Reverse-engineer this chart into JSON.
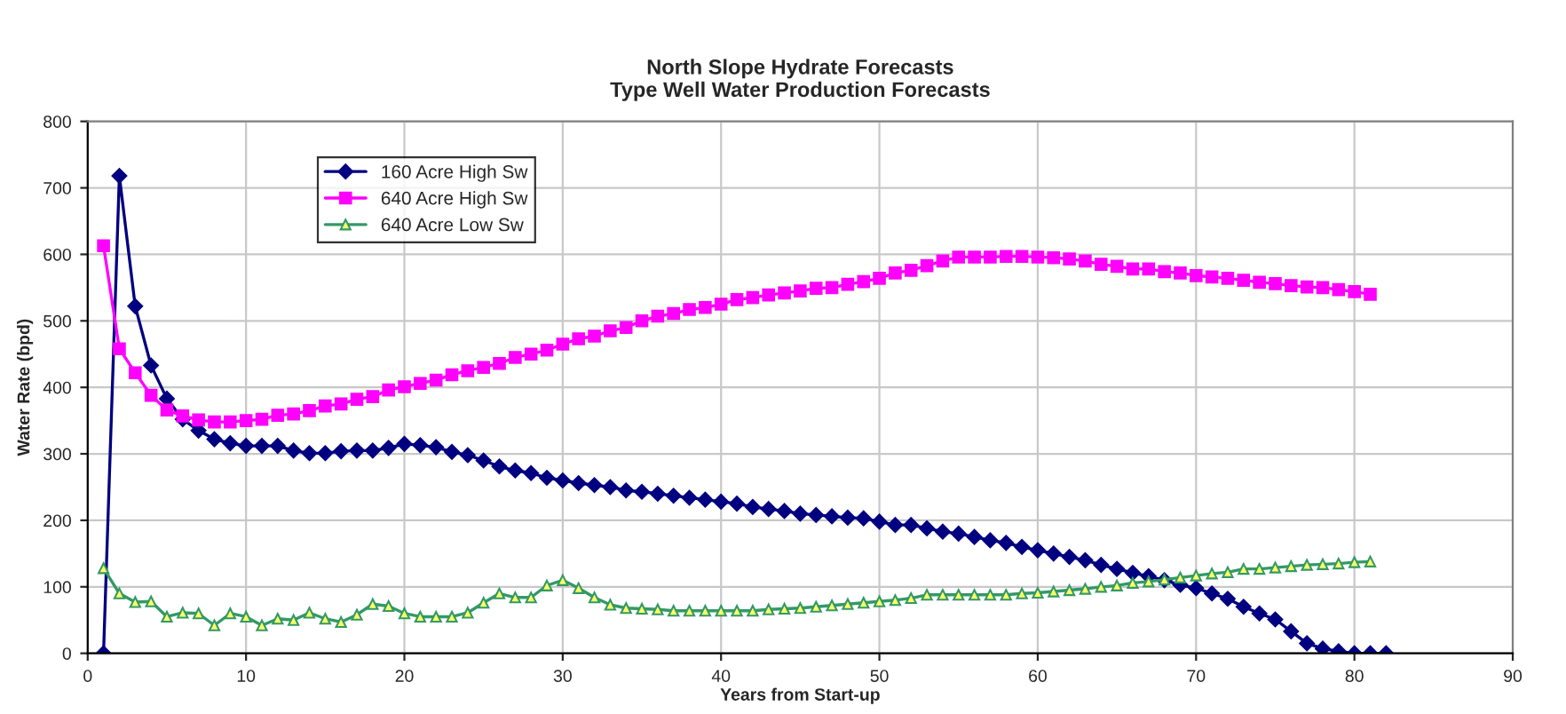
{
  "chart_data": {
    "type": "line",
    "title": "North Slope Hydrate Forecasts\nType Well Water Production Forecasts",
    "xlabel": "Years from Start-up",
    "ylabel": "Water Rate (bpd)",
    "xlim": [
      0,
      90
    ],
    "xticks": [
      0,
      10,
      20,
      30,
      40,
      50,
      60,
      70,
      80,
      90
    ],
    "ylim": [
      0,
      800
    ],
    "yticks": [
      0,
      100,
      200,
      300,
      400,
      500,
      600,
      700,
      800
    ],
    "grid": true,
    "legend": "top left",
    "series": [
      {
        "name": "160 Acre High Sw",
        "color": "#000080",
        "marker": "diamond",
        "x": [
          1,
          2,
          3,
          4,
          5,
          6,
          7,
          8,
          9,
          10,
          11,
          12,
          13,
          14,
          15,
          16,
          17,
          18,
          19,
          20,
          21,
          22,
          23,
          24,
          25,
          26,
          27,
          28,
          29,
          30,
          31,
          32,
          33,
          34,
          35,
          36,
          37,
          38,
          39,
          40,
          41,
          42,
          43,
          44,
          45,
          46,
          47,
          48,
          49,
          50,
          51,
          52,
          53,
          54,
          55,
          56,
          57,
          58,
          59,
          60,
          61,
          62,
          63,
          64,
          65,
          66,
          67,
          68,
          69,
          70,
          71,
          72,
          73,
          74,
          75,
          76,
          77,
          78,
          79,
          80,
          81,
          82
        ],
        "values": [
          0,
          718,
          522,
          433,
          383,
          352,
          335,
          322,
          316,
          312,
          312,
          312,
          305,
          301,
          301,
          304,
          305,
          305,
          309,
          315,
          313,
          310,
          303,
          298,
          290,
          281,
          275,
          271,
          264,
          260,
          256,
          253,
          250,
          245,
          243,
          240,
          237,
          234,
          231,
          228,
          225,
          220,
          217,
          214,
          210,
          208,
          206,
          204,
          203,
          198,
          193,
          193,
          188,
          183,
          180,
          175,
          170,
          166,
          160,
          155,
          150,
          145,
          140,
          133,
          127,
          121,
          116,
          110,
          103,
          98,
          90,
          82,
          70,
          60,
          51,
          33,
          15,
          7,
          3,
          0,
          0,
          0
        ]
      },
      {
        "name": "640 Acre High Sw",
        "color": "#ff00ff",
        "marker": "square",
        "x": [
          1,
          2,
          3,
          4,
          5,
          6,
          7,
          8,
          9,
          10,
          11,
          12,
          13,
          14,
          15,
          16,
          17,
          18,
          19,
          20,
          21,
          22,
          23,
          24,
          25,
          26,
          27,
          28,
          29,
          30,
          31,
          32,
          33,
          34,
          35,
          36,
          37,
          38,
          39,
          40,
          41,
          42,
          43,
          44,
          45,
          46,
          47,
          48,
          49,
          50,
          51,
          52,
          53,
          54,
          55,
          56,
          57,
          58,
          59,
          60,
          61,
          62,
          63,
          64,
          65,
          66,
          67,
          68,
          69,
          70,
          71,
          72,
          73,
          74,
          75,
          76,
          77,
          78,
          79,
          80,
          81
        ],
        "values": [
          613,
          458,
          422,
          388,
          366,
          357,
          351,
          348,
          348,
          350,
          352,
          358,
          360,
          365,
          372,
          375,
          382,
          386,
          396,
          401,
          406,
          411,
          419,
          425,
          430,
          436,
          445,
          450,
          456,
          465,
          473,
          477,
          485,
          490,
          500,
          507,
          511,
          517,
          520,
          525,
          532,
          535,
          539,
          542,
          545,
          549,
          550,
          555,
          559,
          564,
          572,
          576,
          583,
          590,
          596,
          596,
          596,
          597,
          597,
          596,
          595,
          593,
          590,
          585,
          582,
          578,
          578,
          574,
          572,
          568,
          566,
          564,
          561,
          558,
          556,
          553,
          551,
          550,
          547,
          544,
          540
        ]
      },
      {
        "name": "640 Acre Low Sw",
        "color": "#339966",
        "marker": "triangle",
        "x": [
          1,
          2,
          3,
          4,
          5,
          6,
          7,
          8,
          9,
          10,
          11,
          12,
          13,
          14,
          15,
          16,
          17,
          18,
          19,
          20,
          21,
          22,
          23,
          24,
          25,
          26,
          27,
          28,
          29,
          30,
          31,
          32,
          33,
          34,
          35,
          36,
          37,
          38,
          39,
          40,
          41,
          42,
          43,
          44,
          45,
          46,
          47,
          48,
          49,
          50,
          51,
          52,
          53,
          54,
          55,
          56,
          57,
          58,
          59,
          60,
          61,
          62,
          63,
          64,
          65,
          66,
          67,
          68,
          69,
          70,
          71,
          72,
          73,
          74,
          75,
          76,
          77,
          78,
          79,
          80,
          81
        ],
        "values": [
          128,
          90,
          77,
          78,
          55,
          61,
          60,
          42,
          60,
          55,
          42,
          52,
          50,
          61,
          52,
          47,
          58,
          74,
          71,
          60,
          55,
          55,
          55,
          61,
          76,
          90,
          84,
          84,
          102,
          110,
          98,
          84,
          73,
          68,
          67,
          66,
          64,
          64,
          64,
          64,
          64,
          64,
          66,
          67,
          68,
          70,
          72,
          74,
          76,
          78,
          80,
          83,
          88,
          88,
          88,
          88,
          88,
          88,
          90,
          91,
          93,
          95,
          97,
          100,
          102,
          106,
          108,
          111,
          114,
          117,
          120,
          122,
          127,
          127,
          129,
          131,
          133,
          134,
          135,
          137,
          138
        ]
      }
    ]
  }
}
